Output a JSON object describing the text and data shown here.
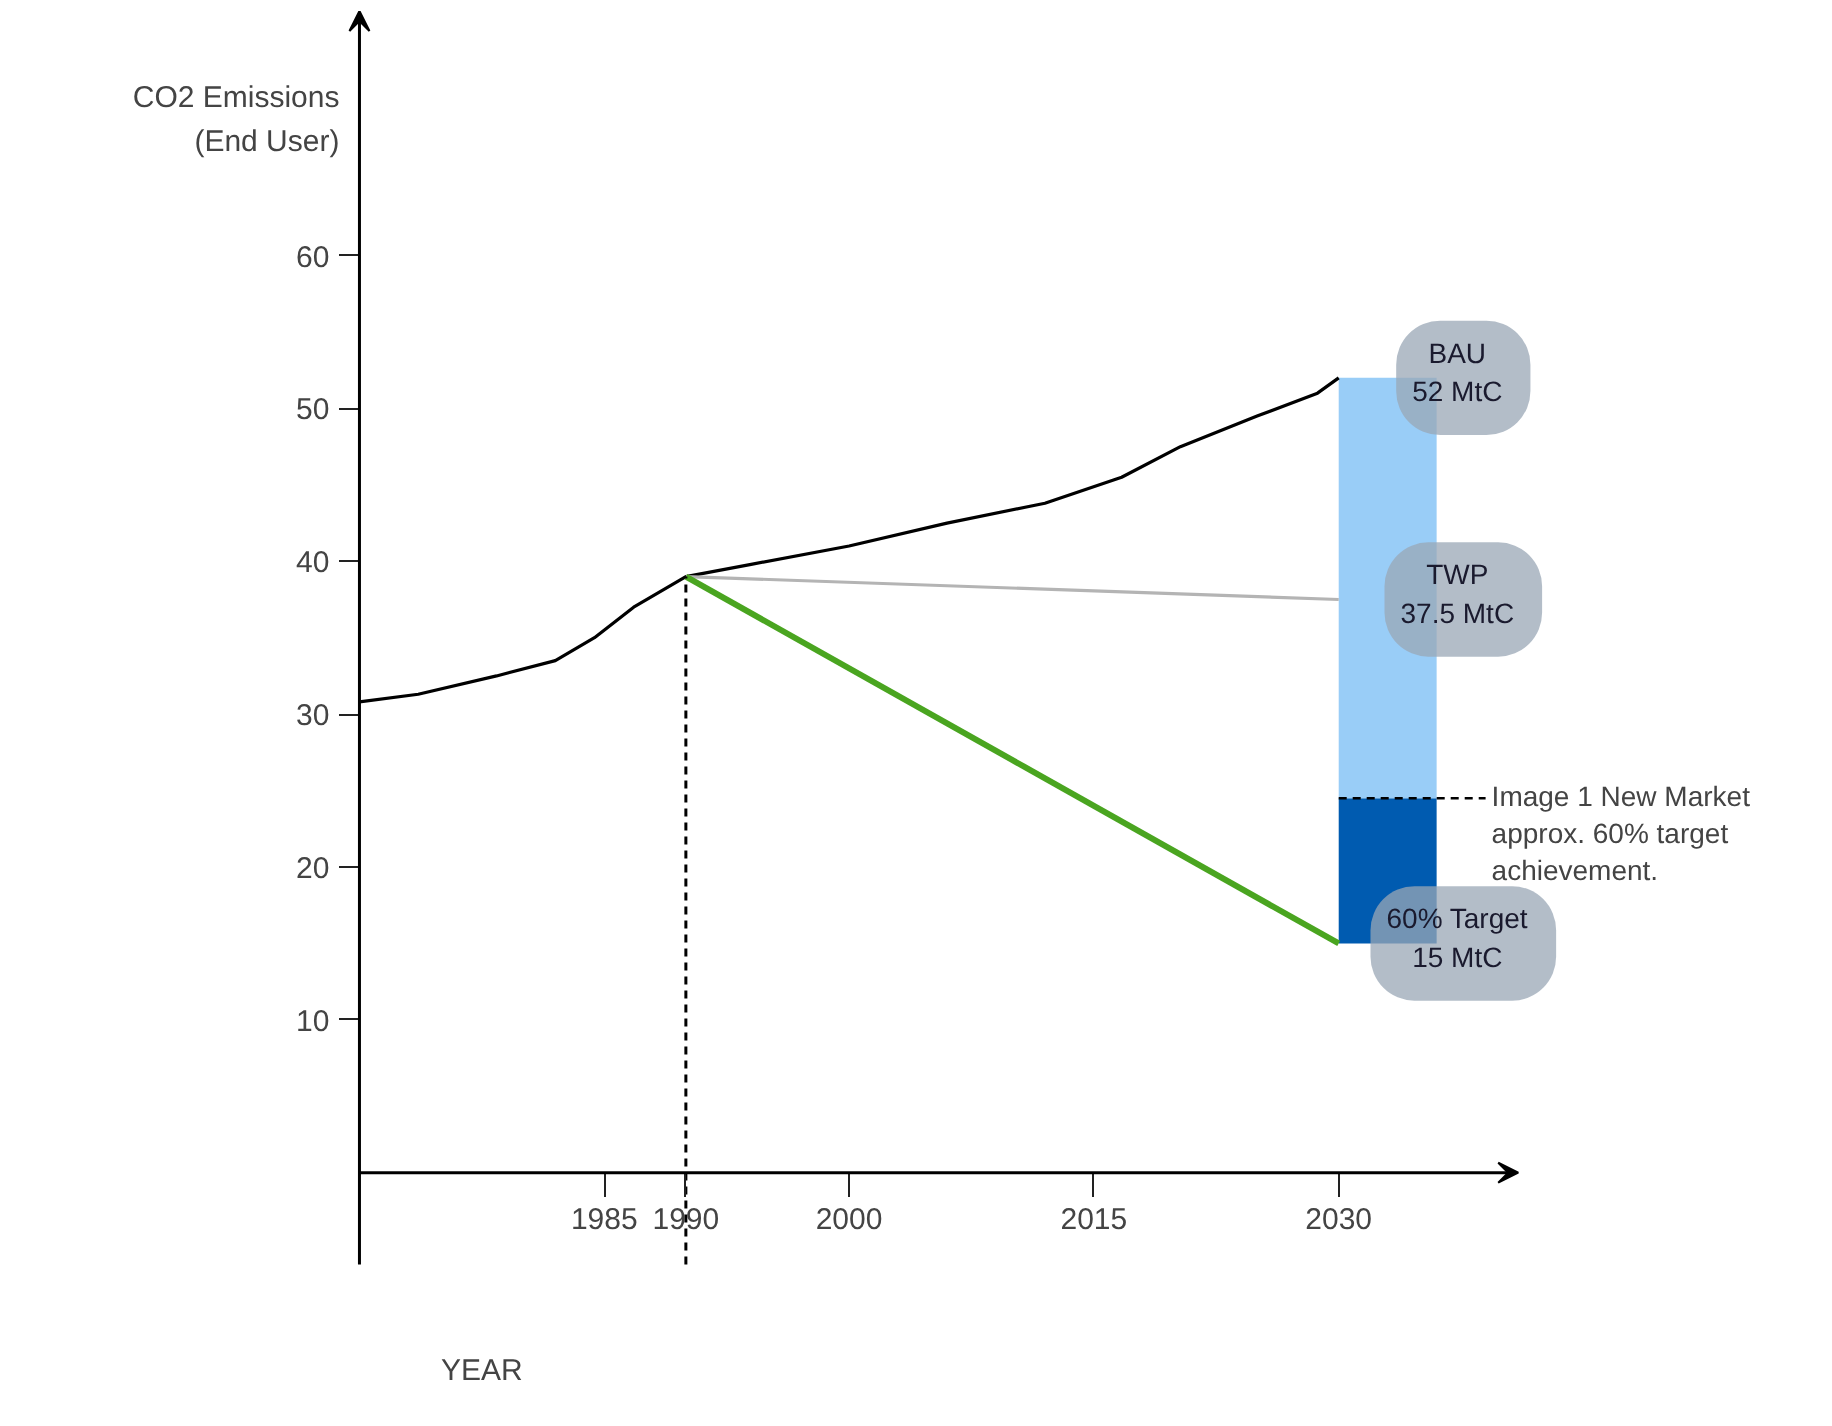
{
  "chart_data": {
    "type": "line",
    "xlabel": "YEAR",
    "ylabel": "CO2 Emissions (End User)",
    "xlim": [
      1970,
      2041
    ],
    "ylim": [
      -6,
      76
    ],
    "xticks": [
      1985,
      1990,
      2000,
      2015,
      2030
    ],
    "yticks": [
      10,
      20,
      30,
      40,
      50,
      60
    ],
    "grid": false,
    "series": [
      {
        "color": "#000000",
        "x": [
          1970,
          1973.6,
          1978.4,
          1982,
          1984.4,
          1986.8,
          1990,
          1994,
          2000,
          2006,
          2012,
          2016.7,
          2020.3,
          2025,
          2028.7,
          2030
        ],
        "values": [
          30.8,
          31.3,
          32.5,
          33.5,
          35,
          37,
          39,
          39.8,
          41,
          42.5,
          43.8,
          45.5,
          47.5,
          49.5,
          51,
          52
        ]
      },
      {
        "type": "line",
        "color": "#b4b4b4",
        "x": [
          1990,
          2030
        ],
        "values": [
          39,
          37.5
        ]
      },
      {
        "type": "line",
        "color": "#4aa520",
        "x": [
          1990,
          2030
        ],
        "values": [
          39,
          15
        ]
      },
      {
        "type": "bar",
        "color": "#005bb0",
        "x": [
          2033
        ],
        "base": [
          15
        ],
        "values": [
          9.5
        ]
      },
      {
        "type": "bar",
        "color": "#99cdf7",
        "x": [
          2033
        ],
        "base": [
          24.5
        ],
        "values": [
          27.5
        ]
      }
    ],
    "ref_lines": [
      {
        "axis": "x",
        "value": 1990,
        "line_style": "dashed",
        "color": "#000000"
      },
      {
        "axis": "y",
        "value": 24.5,
        "line_style": "dashed",
        "color": "#000000",
        "label": "Image 1 New Market approx. 60% target achievement."
      }
    ],
    "annotations": [
      "BAU 52 MtC",
      "TWP 37.5 MtC",
      "60% Target 15 MtC"
    ]
  }
}
